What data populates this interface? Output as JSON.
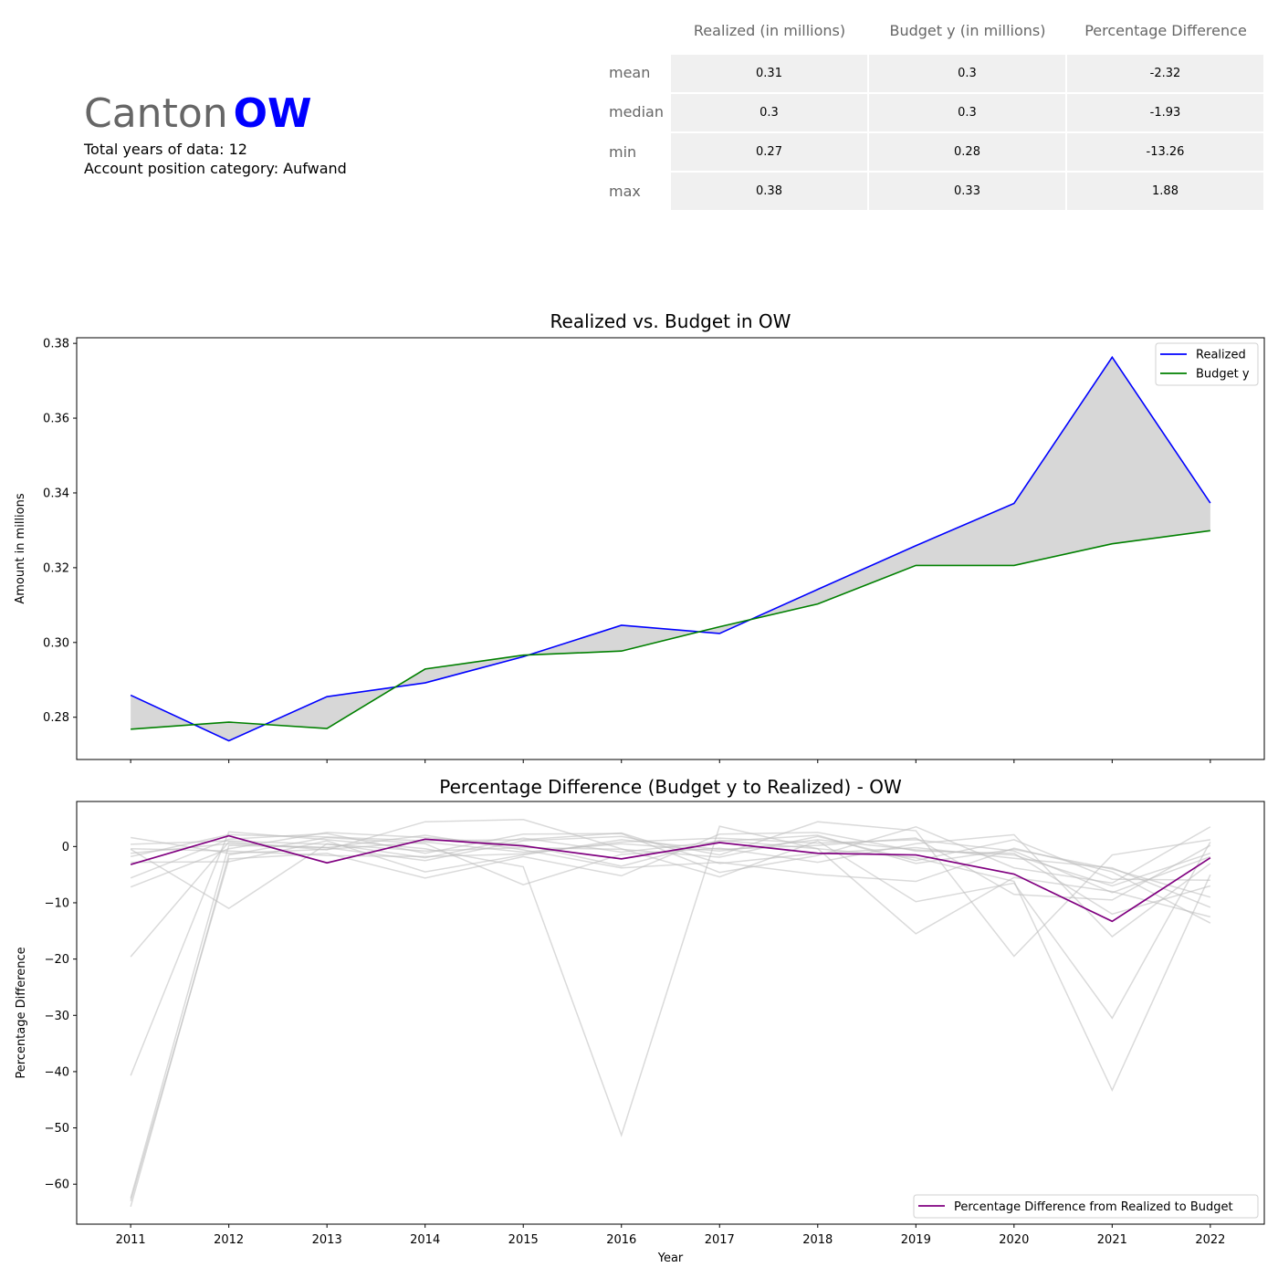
{
  "header": {
    "canton_word": "Canton",
    "canton_code": "OW",
    "years_line": "Total years of data: 12",
    "category_line": "Account position category: Aufwand"
  },
  "stats_table": {
    "columns": [
      "Realized (in millions)",
      "Budget y (in millions)",
      "Percentage Difference"
    ],
    "rows": [
      {
        "label": "mean",
        "values": [
          "0.31",
          "0.3",
          "-2.32"
        ]
      },
      {
        "label": "median",
        "values": [
          "0.3",
          "0.3",
          "-1.93"
        ]
      },
      {
        "label": "min",
        "values": [
          "0.27",
          "0.28",
          "-13.26"
        ]
      },
      {
        "label": "max",
        "values": [
          "0.38",
          "0.33",
          "1.88"
        ]
      }
    ]
  },
  "chart_data": [
    {
      "type": "line",
      "title": "Realized vs. Budget in OW",
      "xlabel": "",
      "ylabel": "Amount in millions",
      "x": [
        2011,
        2012,
        2013,
        2014,
        2015,
        2016,
        2017,
        2018,
        2019,
        2020,
        2021,
        2022
      ],
      "xlim": [
        2010.45,
        2022.55
      ],
      "ylim": [
        0.2687,
        0.3815
      ],
      "yticks": [
        0.28,
        0.3,
        0.32,
        0.34,
        0.36,
        0.38
      ],
      "ytick_labels": [
        "0.28",
        "0.30",
        "0.32",
        "0.34",
        "0.36",
        "0.38"
      ],
      "legend_position": "top-right",
      "fill_between": true,
      "colors": {
        "Realized": "#0000ff",
        "Budget y": "#008000",
        "fill": "#d3d3d3"
      },
      "series": [
        {
          "name": "Realized",
          "values": [
            0.2859,
            0.2737,
            0.2855,
            0.2892,
            0.2962,
            0.3046,
            0.3024,
            0.3142,
            0.3259,
            0.3372,
            0.3763,
            0.3373
          ]
        },
        {
          "name": "Budget y",
          "values": [
            0.2768,
            0.2787,
            0.277,
            0.2929,
            0.2966,
            0.2977,
            0.3042,
            0.3103,
            0.3206,
            0.3206,
            0.3264,
            0.3299
          ]
        }
      ]
    },
    {
      "type": "line",
      "title": "Percentage Difference (Budget y to Realized) - OW",
      "xlabel": "Year",
      "ylabel": "Percentage Difference",
      "x": [
        2011,
        2012,
        2013,
        2014,
        2015,
        2016,
        2017,
        2018,
        2019,
        2020,
        2021,
        2022
      ],
      "xtick_labels": [
        "2011",
        "2012",
        "2013",
        "2014",
        "2015",
        "2016",
        "2017",
        "2018",
        "2019",
        "2020",
        "2021",
        "2022"
      ],
      "xlim": [
        2010.45,
        2022.55
      ],
      "ylim": [
        -67.1,
        8.0
      ],
      "yticks": [
        0,
        -10,
        -20,
        -30,
        -40,
        -50,
        -60
      ],
      "ytick_labels": [
        "0",
        "−10",
        "−20",
        "−30",
        "−40",
        "−50",
        "−60"
      ],
      "legend_position": "bottom-right",
      "colors": {
        "highlight": "#800080",
        "background": "#bbbbbb"
      },
      "highlight_series": {
        "name": "Percentage Difference from Realized to Budget",
        "values": [
          -3.2,
          1.9,
          -2.9,
          1.3,
          0.1,
          -2.2,
          0.7,
          -1.2,
          -1.5,
          -4.9,
          -13.3,
          -2.0
        ]
      },
      "background_series": [
        {
          "values": [
            1.6,
            -1.2,
            -0.5,
            0.8,
            -1.0,
            0.5,
            -0.8,
            1.2,
            -0.6,
            -1.5,
            -7.0,
            -1.2
          ]
        },
        {
          "values": [
            -0.5,
            -11.0,
            0.5,
            -2.0,
            1.5,
            -1.0,
            0.9,
            2.0,
            -3.0,
            -0.5,
            -4.0,
            -9.0
          ]
        },
        {
          "values": [
            -7.2,
            -0.4,
            2.5,
            1.6,
            0.3,
            -3.5,
            1.1,
            -0.4,
            -15.5,
            -5.5,
            -8.0,
            -12.5
          ]
        },
        {
          "values": [
            -19.6,
            0.8,
            -0.6,
            4.4,
            4.8,
            -0.4,
            -5.4,
            1.0,
            -9.8,
            -6.5,
            -30.5,
            0.8
          ]
        },
        {
          "values": [
            -40.7,
            2.6,
            1.2,
            -0.4,
            -3.6,
            -51.3,
            3.6,
            -0.4,
            -2.0,
            -6.2,
            -43.3,
            -5.0
          ]
        },
        {
          "values": [
            -62.5,
            0.2,
            -0.2,
            -2.5,
            1.0,
            1.8,
            -1.5,
            4.4,
            2.8,
            -19.5,
            -1.5,
            1.2
          ]
        },
        {
          "values": [
            -64.0,
            -1.5,
            1.6,
            0.5,
            -6.8,
            -1.4,
            -0.3,
            -2.8,
            0.5,
            2.1,
            -16.0,
            -3.0
          ]
        },
        {
          "values": [
            -63.0,
            -2.2,
            -1.2,
            -5.6,
            -1.8,
            -5.2,
            2.2,
            2.5,
            -0.8,
            -1.2,
            -12.0,
            -7.0
          ]
        },
        {
          "values": [
            -5.6,
            1.3,
            2.3,
            -1.2,
            2.2,
            2.3,
            -4.6,
            -1.6,
            3.5,
            -3.8,
            -6.5,
            3.5
          ]
        },
        {
          "values": [
            -1.2,
            0.5,
            -0.2,
            2.0,
            -0.6,
            -3.8,
            -2.8,
            -5.0,
            -6.2,
            -0.3,
            -4.5,
            -13.6
          ]
        },
        {
          "values": [
            -2.8,
            -2.7,
            1.0,
            -4.5,
            -1.5,
            1.2,
            -0.5,
            0.2,
            1.5,
            -8.5,
            -9.5,
            0.2
          ]
        },
        {
          "values": [
            0.4,
            1.0,
            0.4,
            -0.8,
            -0.2,
            -0.5,
            -1.9,
            1.8,
            -2.5,
            1.2,
            -5.8,
            -6.0
          ]
        },
        {
          "values": [
            -1.8,
            2.1,
            1.7,
            1.0,
            1.2,
            2.4,
            -3.0,
            -1.2,
            -0.2,
            -2.1,
            -3.8,
            -10.8
          ]
        },
        {
          "values": [
            -0.4,
            -0.8,
            -1.6,
            -1.8,
            -1.3,
            0.8,
            1.5,
            0.6,
            1.2,
            -0.8,
            -8.2,
            -1.8
          ]
        }
      ]
    }
  ]
}
